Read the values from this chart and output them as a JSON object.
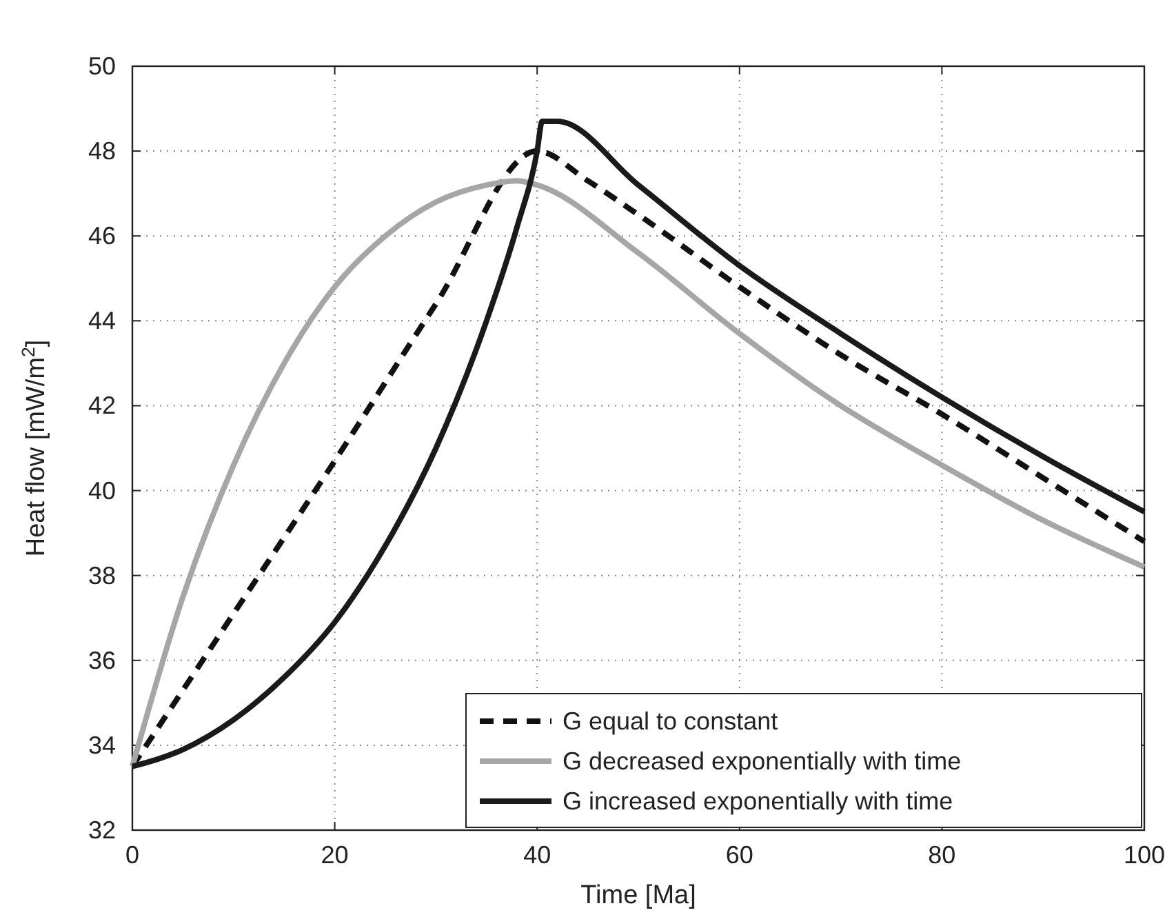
{
  "chart_data": {
    "type": "line",
    "xlabel": "Time [Ma]",
    "ylabel": "Heat flow [mW/m$^{2}$]",
    "xlim": [
      0,
      100
    ],
    "ylim": [
      32,
      50
    ],
    "xticks": [
      0,
      20,
      40,
      60,
      80,
      100
    ],
    "yticks": [
      32,
      34,
      36,
      38,
      40,
      42,
      44,
      46,
      48,
      50
    ],
    "grid": true,
    "legend": "bottom right",
    "series": [
      {
        "name": "G equal to constant",
        "color": "#111111",
        "line_style": "dashed",
        "x": [
          0,
          10,
          20,
          30,
          40,
          45,
          50,
          60,
          70,
          80,
          90,
          100
        ],
        "values": [
          33.5,
          37.1,
          40.7,
          44.4,
          48.0,
          47.3,
          46.5,
          44.8,
          43.2,
          41.8,
          40.3,
          38.8
        ]
      },
      {
        "name": "G decreased exponentially with time",
        "color": "#a6a6a6",
        "line_style": "solid",
        "x": [
          0,
          5,
          10,
          15,
          20,
          25,
          30,
          35,
          38,
          40,
          50,
          60,
          70,
          80,
          90,
          100
        ],
        "values": [
          33.5,
          37.5,
          40.6,
          43.0,
          44.8,
          46.0,
          46.8,
          47.2,
          47.3,
          47.2,
          45.6,
          43.7,
          42.0,
          40.6,
          39.3,
          38.2
        ]
      },
      {
        "name": "G increased exponentially with time",
        "color": "#1a1a1a",
        "line_style": "solid",
        "x": [
          0,
          5,
          10,
          15,
          20,
          25,
          30,
          35,
          38,
          40,
          40.5,
          42,
          50,
          60,
          70,
          80,
          90,
          100
        ],
        "values": [
          33.5,
          33.9,
          34.6,
          35.6,
          36.9,
          38.7,
          41.0,
          44.0,
          46.2,
          48.0,
          48.7,
          48.7,
          47.2,
          45.3,
          43.7,
          42.2,
          40.8,
          39.5
        ]
      }
    ]
  }
}
